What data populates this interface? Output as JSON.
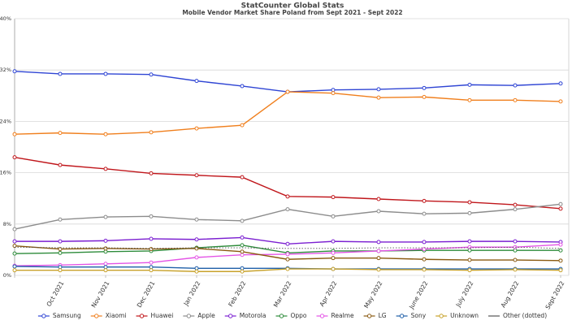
{
  "chart_data": {
    "type": "line",
    "title": "StatCounter Global Stats",
    "subtitle": "Mobile Vendor Market Share Poland from Sept 2021 - Sept 2022",
    "categories": [
      null,
      "Oct 2021",
      "Nov 2021",
      "Dec 2021",
      "Jan 2022",
      "Feb 2022",
      "Mar 2022",
      "Apr 2022",
      "May 2022",
      "June 2022",
      "July 2022",
      "Aug 2022",
      "Sept 2022"
    ],
    "ylim": [
      0,
      40
    ],
    "yticks": [
      {
        "value": 0,
        "label": "0%"
      },
      {
        "value": 8,
        "label": "8%"
      },
      {
        "value": 16,
        "label": "16%"
      },
      {
        "value": 24,
        "label": "24%"
      },
      {
        "value": 32,
        "label": "32%"
      },
      {
        "value": 40,
        "label": "40%"
      }
    ],
    "grid": true,
    "series": [
      {
        "name": "Samsung",
        "color": "#2f45d4",
        "values": [
          31.8,
          31.4,
          31.4,
          31.3,
          30.3,
          29.5,
          28.6,
          28.9,
          29.0,
          29.2,
          29.7,
          29.6,
          29.9
        ]
      },
      {
        "name": "Xiaomi",
        "color": "#f07f1d",
        "values": [
          22.0,
          22.2,
          22.0,
          22.3,
          22.9,
          23.4,
          28.6,
          28.4,
          27.7,
          27.8,
          27.3,
          27.3,
          27.1
        ]
      },
      {
        "name": "Huawei",
        "color": "#c0161b",
        "values": [
          18.4,
          17.2,
          16.6,
          15.9,
          15.6,
          15.3,
          12.3,
          12.2,
          11.9,
          11.6,
          11.4,
          11.0,
          10.4
        ]
      },
      {
        "name": "Apple",
        "color": "#8c8c8c",
        "values": [
          7.2,
          8.7,
          9.1,
          9.2,
          8.7,
          8.5,
          10.3,
          9.2,
          10.0,
          9.6,
          9.7,
          10.3,
          11.1
        ]
      },
      {
        "name": "Motorola",
        "color": "#7b1fd1",
        "values": [
          5.3,
          5.3,
          5.4,
          5.7,
          5.6,
          5.9,
          4.9,
          5.3,
          5.2,
          5.2,
          5.3,
          5.3,
          5.2
        ]
      },
      {
        "name": "Oppo",
        "color": "#2d8b3a",
        "values": [
          3.4,
          3.5,
          3.7,
          3.8,
          4.3,
          4.7,
          3.5,
          3.8,
          3.8,
          3.9,
          3.9,
          3.9,
          3.9
        ]
      },
      {
        "name": "Realme",
        "color": "#e454e6",
        "values": [
          1.5,
          1.6,
          1.8,
          2.0,
          2.8,
          3.2,
          3.3,
          3.5,
          3.8,
          4.1,
          4.4,
          4.4,
          4.8
        ]
      },
      {
        "name": "LG",
        "color": "#8a5a10",
        "values": [
          4.6,
          4.1,
          4.2,
          4.1,
          4.2,
          3.7,
          2.5,
          2.7,
          2.7,
          2.5,
          2.4,
          2.4,
          2.3
        ]
      },
      {
        "name": "Sony",
        "color": "#1f5fa8",
        "values": [
          1.4,
          1.3,
          1.3,
          1.3,
          1.1,
          1.1,
          1.1,
          1.0,
          1.0,
          1.0,
          1.0,
          1.0,
          1.0
        ]
      },
      {
        "name": "Unknown",
        "color": "#c8a22b",
        "values": [
          0.8,
          0.8,
          0.8,
          0.8,
          0.6,
          0.6,
          1.0,
          1.0,
          0.9,
          0.9,
          0.8,
          0.9,
          0.8
        ]
      },
      {
        "name": "Other (dotted)",
        "color": "#555555",
        "dotted": true,
        "values": [
          4.4,
          4.3,
          4.3,
          4.2,
          4.3,
          4.3,
          4.2,
          4.2,
          4.3,
          4.3,
          4.3,
          4.4,
          4.2
        ]
      }
    ]
  }
}
